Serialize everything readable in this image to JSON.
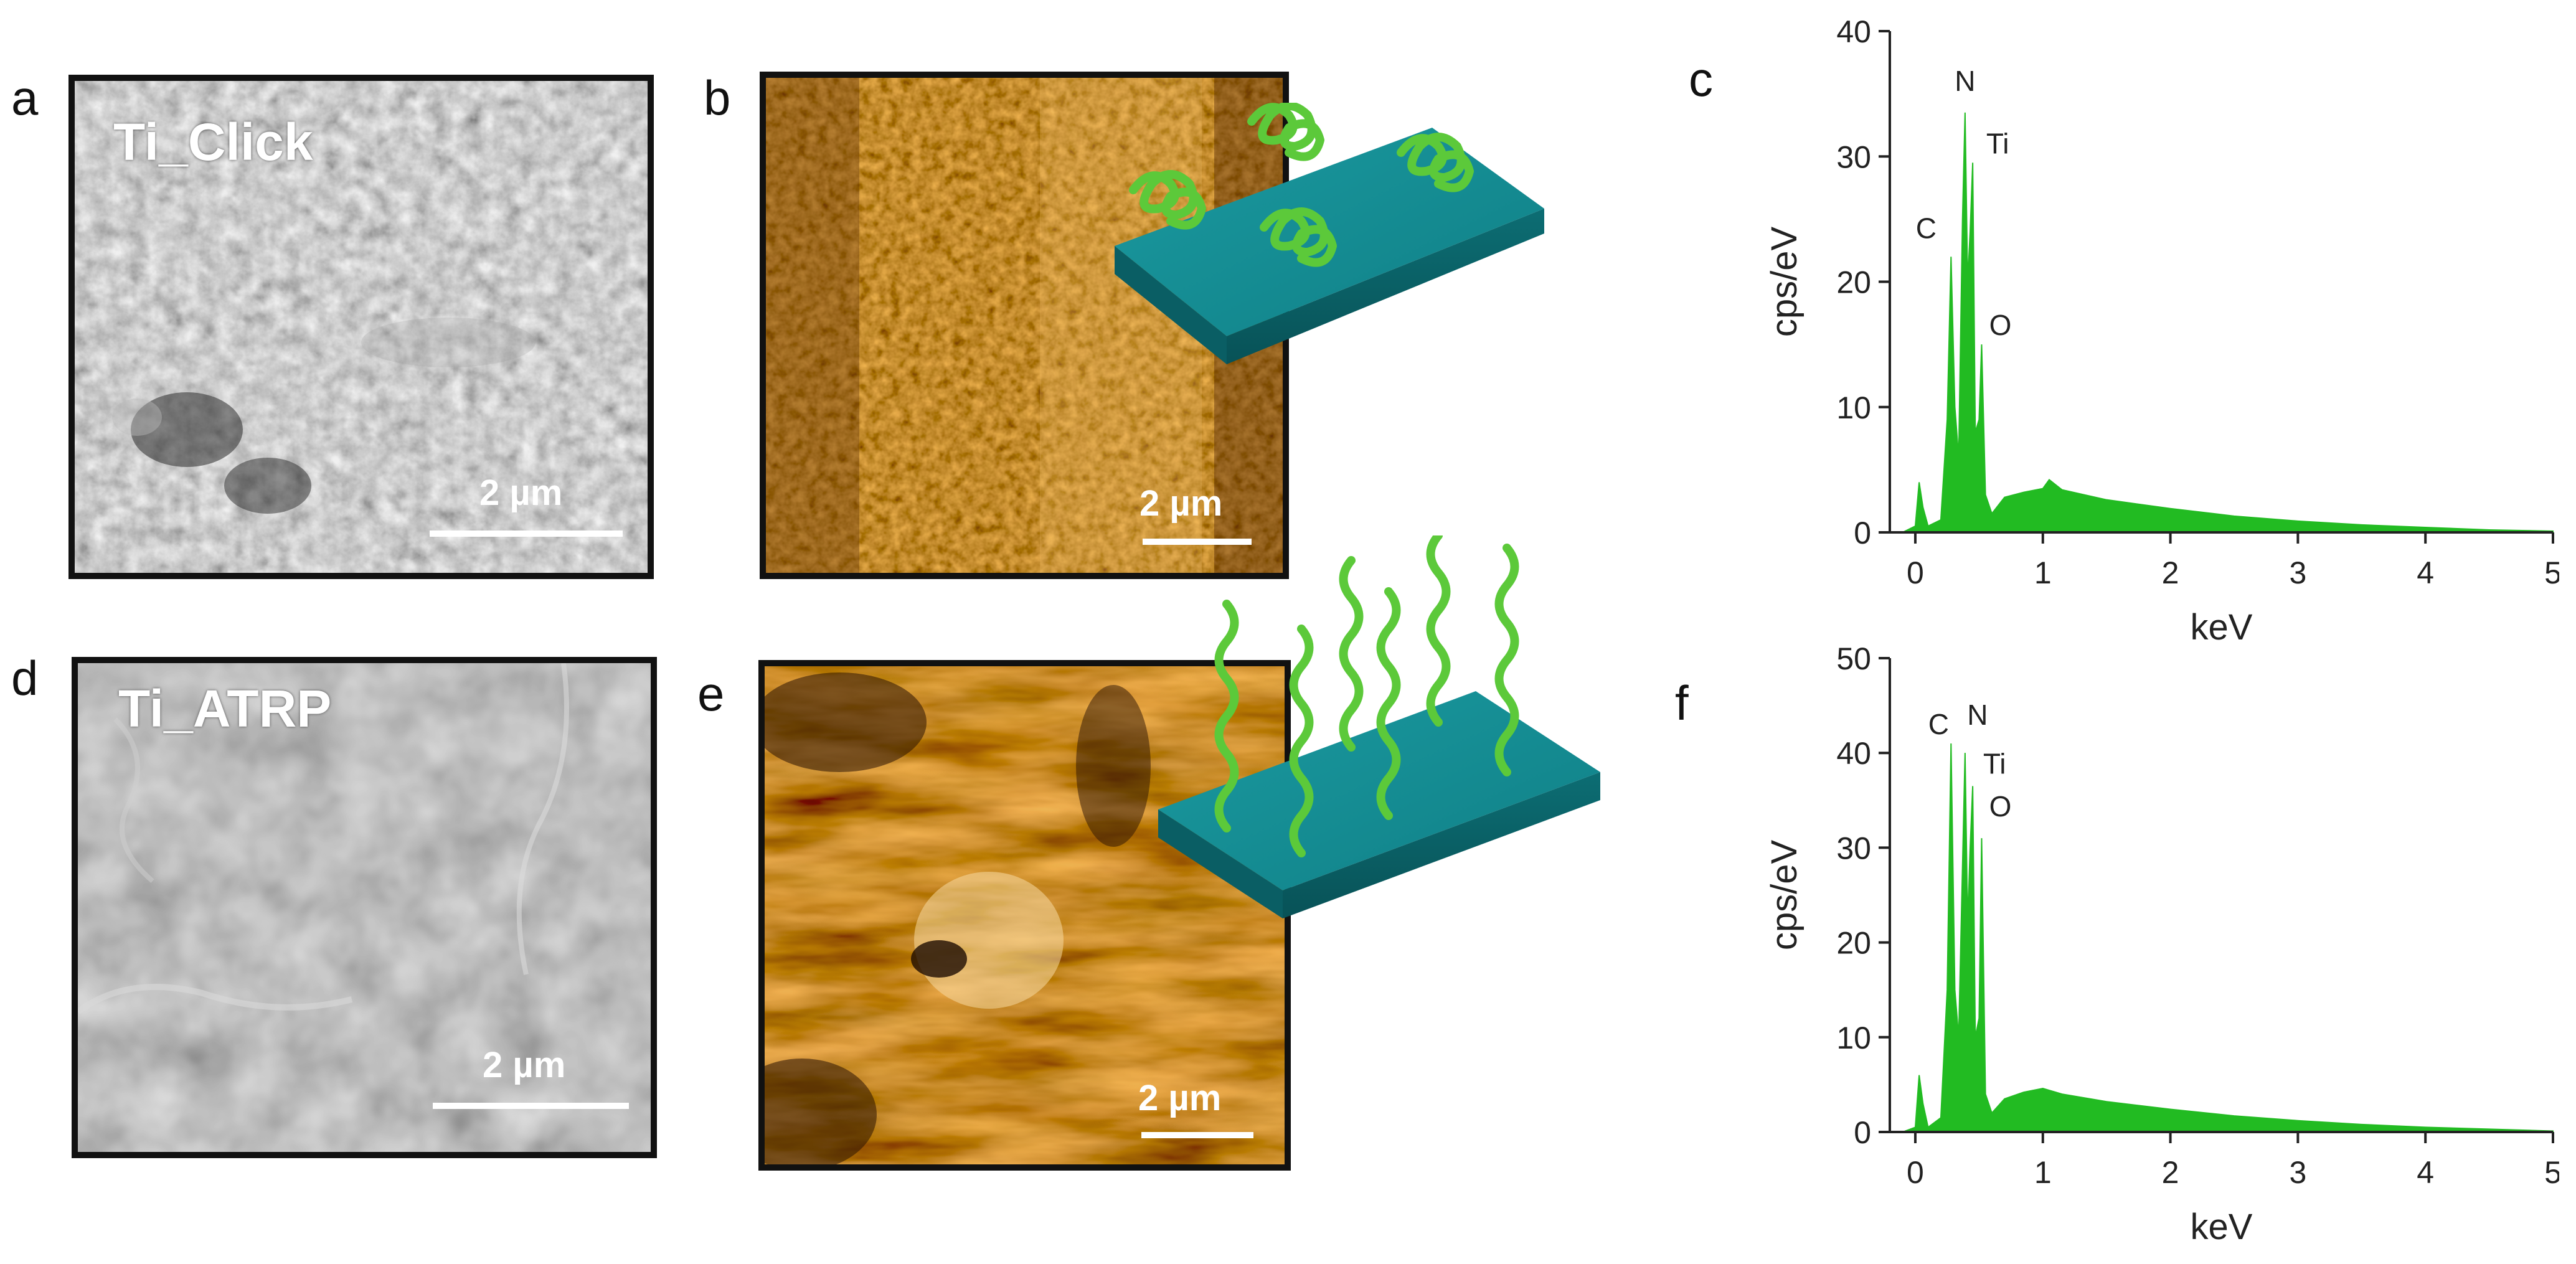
{
  "panels": {
    "a": {
      "letter": "a",
      "label": "Ti_Click",
      "scale": "2 µm"
    },
    "b": {
      "letter": "b",
      "scale": "2 µm"
    },
    "c": {
      "letter": "c"
    },
    "d": {
      "letter": "d",
      "label": "Ti_ATRP",
      "scale": "2 µm"
    },
    "e": {
      "letter": "e",
      "scale": "2 µm"
    },
    "f": {
      "letter": "f"
    }
  },
  "colors": {
    "spectrum": "#22bb22",
    "substrate": "#138f95",
    "polymer": "#5cc93a",
    "afm": "#b46a18"
  },
  "chart_data": [
    {
      "panel": "c",
      "type": "area",
      "xlabel": "keV",
      "ylabel": "cps/eV",
      "xlim": [
        -0.2,
        5
      ],
      "ylim": [
        0,
        40
      ],
      "xticks": [
        "0",
        "1",
        "2",
        "3",
        "4",
        "5"
      ],
      "yticks": [
        "0",
        "10",
        "20",
        "30",
        "40"
      ],
      "peaks": [
        {
          "label": "C",
          "x": 0.28,
          "y": 22
        },
        {
          "label": "N",
          "x": 0.39,
          "y": 33.5
        },
        {
          "label": "Ti",
          "x": 0.45,
          "y": 29.5
        },
        {
          "label": "O",
          "x": 0.52,
          "y": 15
        }
      ],
      "x": [
        -0.1,
        0.0,
        0.03,
        0.06,
        0.1,
        0.2,
        0.25,
        0.28,
        0.31,
        0.34,
        0.37,
        0.39,
        0.41,
        0.43,
        0.45,
        0.47,
        0.5,
        0.52,
        0.55,
        0.6,
        0.7,
        0.85,
        1.0,
        1.05,
        1.15,
        1.5,
        2.0,
        2.5,
        3.0,
        3.5,
        4.0,
        4.5,
        5.0
      ],
      "y": [
        0,
        0.5,
        4,
        2,
        0.5,
        1,
        9,
        22,
        10,
        6,
        25,
        33.5,
        20,
        24,
        29.5,
        8,
        9,
        15,
        3,
        1.5,
        2.8,
        3.2,
        3.5,
        4.2,
        3.4,
        2.6,
        1.9,
        1.3,
        0.9,
        0.6,
        0.4,
        0.2,
        0.1
      ]
    },
    {
      "panel": "f",
      "type": "area",
      "xlabel": "keV",
      "ylabel": "cps/eV",
      "xlim": [
        -0.2,
        5
      ],
      "ylim": [
        0,
        50
      ],
      "xticks": [
        "0",
        "1",
        "2",
        "3",
        "4",
        "5"
      ],
      "yticks": [
        "0",
        "10",
        "20",
        "30",
        "40",
        "50"
      ],
      "peaks": [
        {
          "label": "C",
          "x": 0.28,
          "y": 41
        },
        {
          "label": "N",
          "x": 0.39,
          "y": 40
        },
        {
          "label": "Ti",
          "x": 0.45,
          "y": 36.5
        },
        {
          "label": "O",
          "x": 0.52,
          "y": 31
        }
      ],
      "x": [
        -0.1,
        0.0,
        0.03,
        0.06,
        0.1,
        0.2,
        0.25,
        0.28,
        0.31,
        0.34,
        0.37,
        0.39,
        0.41,
        0.43,
        0.45,
        0.47,
        0.5,
        0.52,
        0.55,
        0.6,
        0.7,
        0.85,
        1.0,
        1.05,
        1.15,
        1.5,
        2.0,
        2.5,
        3.0,
        3.5,
        4.0,
        4.5,
        5.0
      ],
      "y": [
        0,
        0.5,
        6,
        3,
        0.5,
        1.5,
        15,
        41,
        15,
        10,
        28,
        40,
        22,
        30,
        36.5,
        10,
        12,
        31,
        4,
        2,
        3.5,
        4.2,
        4.6,
        4.4,
        4.0,
        3.2,
        2.4,
        1.7,
        1.2,
        0.8,
        0.5,
        0.3,
        0.1
      ]
    }
  ]
}
